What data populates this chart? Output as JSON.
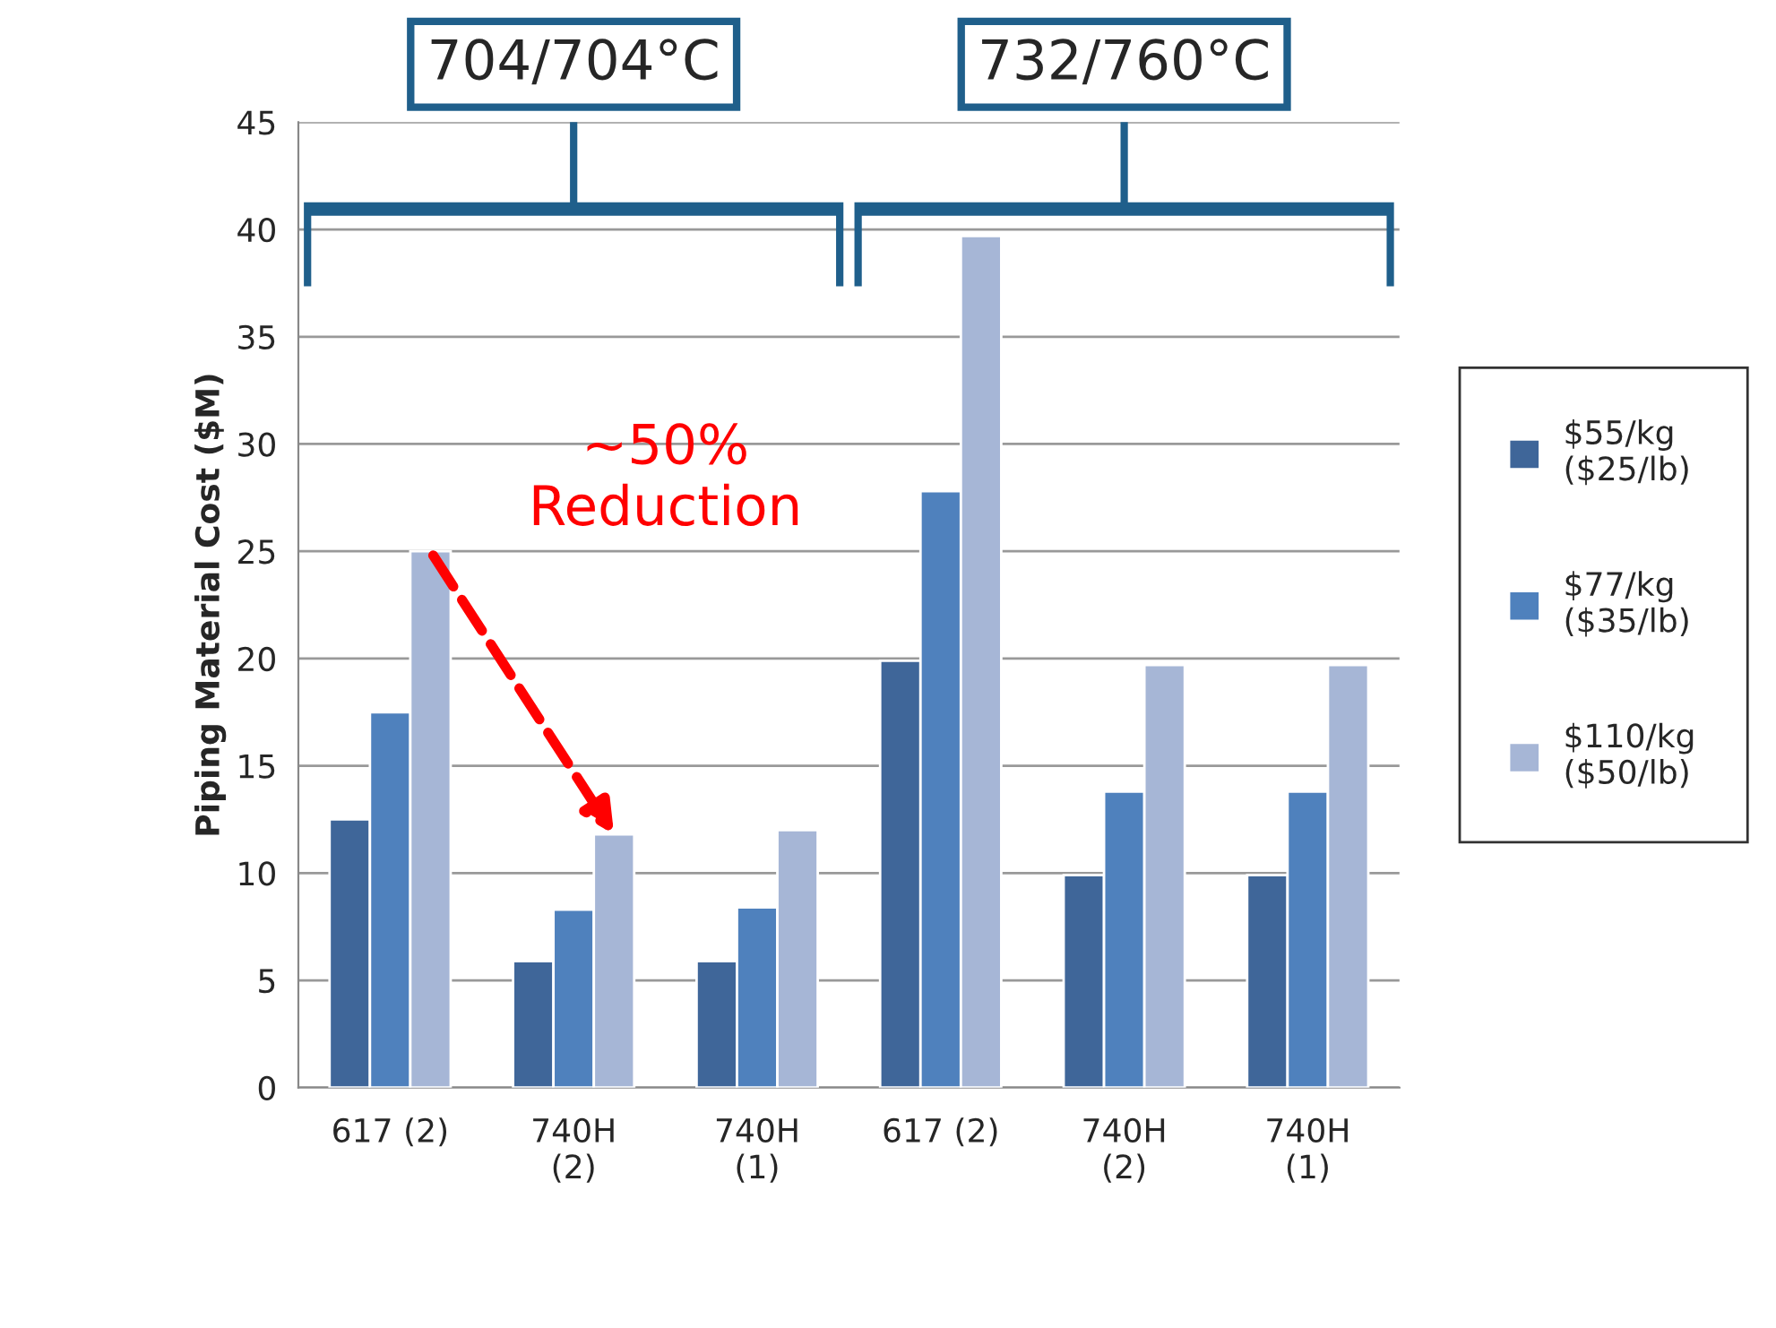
{
  "chart_data": {
    "type": "bar",
    "ylabel": "Piping Material Cost ($M)",
    "categories": [
      "617 (2)",
      "740H\n(2)",
      "740H\n(1)",
      "617 (2)",
      "740H\n(2)",
      "740H\n(1)"
    ],
    "series": [
      {
        "name": "$55/kg\n($25/lb)",
        "color": "#3f6699",
        "values": [
          12.5,
          5.9,
          5.9,
          19.9,
          9.9,
          9.9
        ]
      },
      {
        "name": "$77/kg\n($35/lb)",
        "color": "#4f81bd",
        "values": [
          17.5,
          8.3,
          8.4,
          27.8,
          13.8,
          13.8
        ]
      },
      {
        "name": "$110/kg\n($50/lb)",
        "color": "#a6b6d6",
        "values": [
          25,
          11.8,
          12,
          39.7,
          19.7,
          19.7
        ]
      }
    ],
    "ylim": [
      0,
      45
    ],
    "yticks": [
      0,
      5,
      10,
      15,
      20,
      25,
      30,
      35,
      40,
      45
    ],
    "grid": "y",
    "legend": "right",
    "annotations": [
      "704/704°C",
      "732/760°C",
      "~50%\nReduction"
    ]
  }
}
